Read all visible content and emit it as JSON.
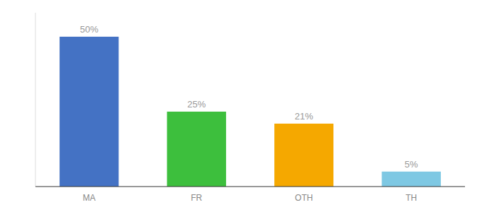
{
  "chart_data": {
    "type": "bar",
    "categories": [
      "MA",
      "FR",
      "OTH",
      "TH"
    ],
    "values": [
      50,
      25,
      21,
      5
    ],
    "value_labels": [
      "50%",
      "25%",
      "21%",
      "5%"
    ],
    "colors": [
      "#4472c4",
      "#3dbf3d",
      "#f5a800",
      "#7ec8e3"
    ],
    "ylim": [
      0,
      58
    ],
    "data_labels": true,
    "tick_labels": "x"
  }
}
